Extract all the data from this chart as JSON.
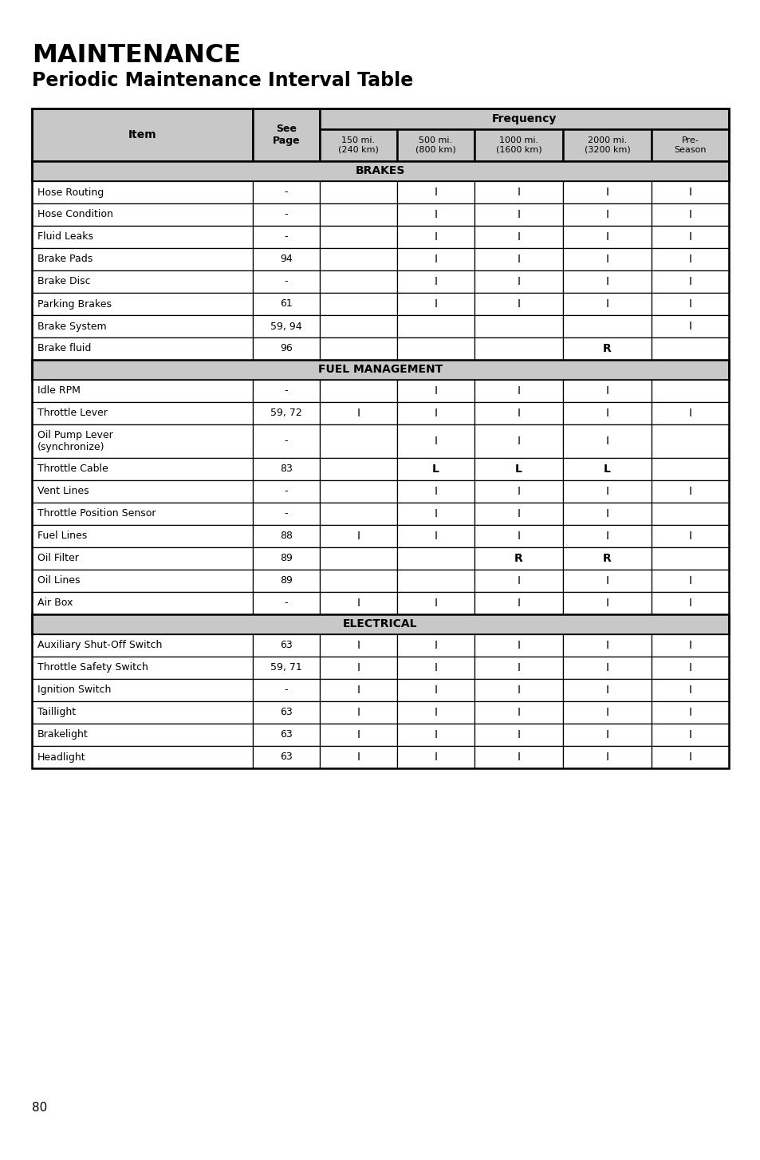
{
  "title_line1": "MAINTENANCE",
  "title_line2": "Periodic Maintenance Interval Table",
  "page_number": "80",
  "header_bg": "#c8c8c8",
  "freq_header": "Frequency",
  "freq_col_labels": [
    "150 mi.\n(240 km)",
    "500 mi.\n(800 km)",
    "1000 mi.\n(1600 km)",
    "2000 mi.\n(3200 km)",
    "Pre-\nSeason"
  ],
  "sections": [
    {
      "name": "BRAKES",
      "rows": [
        {
          "item": "Hose Routing",
          "page": "-",
          "c1": "",
          "c2": "I",
          "c3": "I",
          "c4": "I",
          "c5": "I"
        },
        {
          "item": "Hose Condition",
          "page": "-",
          "c1": "",
          "c2": "I",
          "c3": "I",
          "c4": "I",
          "c5": "I"
        },
        {
          "item": "Fluid Leaks",
          "page": "-",
          "c1": "",
          "c2": "I",
          "c3": "I",
          "c4": "I",
          "c5": "I"
        },
        {
          "item": "Brake Pads",
          "page": "94",
          "c1": "",
          "c2": "I",
          "c3": "I",
          "c4": "I",
          "c5": "I"
        },
        {
          "item": "Brake Disc",
          "page": "-",
          "c1": "",
          "c2": "I",
          "c3": "I",
          "c4": "I",
          "c5": "I"
        },
        {
          "item": "Parking Brakes",
          "page": "61",
          "c1": "",
          "c2": "I",
          "c3": "I",
          "c4": "I",
          "c5": "I"
        },
        {
          "item": "Brake System",
          "page": "59, 94",
          "c1": "",
          "c2": "",
          "c3": "",
          "c4": "",
          "c5": "I"
        },
        {
          "item": "Brake fluid",
          "page": "96",
          "c1": "",
          "c2": "",
          "c3": "",
          "c4": "R",
          "c5": ""
        }
      ]
    },
    {
      "name": "FUEL MANAGEMENT",
      "rows": [
        {
          "item": "Idle RPM",
          "page": "-",
          "c1": "",
          "c2": "I",
          "c3": "I",
          "c4": "I",
          "c5": ""
        },
        {
          "item": "Throttle Lever",
          "page": "59, 72",
          "c1": "I",
          "c2": "I",
          "c3": "I",
          "c4": "I",
          "c5": "I"
        },
        {
          "item": "Oil Pump Lever\n(synchronize)",
          "page": "-",
          "c1": "",
          "c2": "I",
          "c3": "I",
          "c4": "I",
          "c5": ""
        },
        {
          "item": "Throttle Cable",
          "page": "83",
          "c1": "",
          "c2": "L",
          "c3": "L",
          "c4": "L",
          "c5": ""
        },
        {
          "item": "Vent Lines",
          "page": "-",
          "c1": "",
          "c2": "I",
          "c3": "I",
          "c4": "I",
          "c5": "I"
        },
        {
          "item": "Throttle Position Sensor",
          "page": "-",
          "c1": "",
          "c2": "I",
          "c3": "I",
          "c4": "I",
          "c5": ""
        },
        {
          "item": "Fuel Lines",
          "page": "88",
          "c1": "I",
          "c2": "I",
          "c3": "I",
          "c4": "I",
          "c5": "I"
        },
        {
          "item": "Oil Filter",
          "page": "89",
          "c1": "",
          "c2": "",
          "c3": "R",
          "c4": "R",
          "c5": ""
        },
        {
          "item": "Oil Lines",
          "page": "89",
          "c1": "",
          "c2": "",
          "c3": "I",
          "c4": "I",
          "c5": "I"
        },
        {
          "item": "Air Box",
          "page": "-",
          "c1": "I",
          "c2": "I",
          "c3": "I",
          "c4": "I",
          "c5": "I"
        }
      ]
    },
    {
      "name": "ELECTRICAL",
      "rows": [
        {
          "item": "Auxiliary Shut-Off Switch",
          "page": "63",
          "c1": "I",
          "c2": "I",
          "c3": "I",
          "c4": "I",
          "c5": "I"
        },
        {
          "item": "Throttle Safety Switch",
          "page": "59, 71",
          "c1": "I",
          "c2": "I",
          "c3": "I",
          "c4": "I",
          "c5": "I"
        },
        {
          "item": "Ignition Switch",
          "page": "-",
          "c1": "I",
          "c2": "I",
          "c3": "I",
          "c4": "I",
          "c5": "I"
        },
        {
          "item": "Taillight",
          "page": "63",
          "c1": "I",
          "c2": "I",
          "c3": "I",
          "c4": "I",
          "c5": "I"
        },
        {
          "item": "Brakelight",
          "page": "63",
          "c1": "I",
          "c2": "I",
          "c3": "I",
          "c4": "I",
          "c5": "I"
        },
        {
          "item": "Headlight",
          "page": "63",
          "c1": "I",
          "c2": "I",
          "c3": "I",
          "c4": "I",
          "c5": "I"
        }
      ]
    }
  ]
}
